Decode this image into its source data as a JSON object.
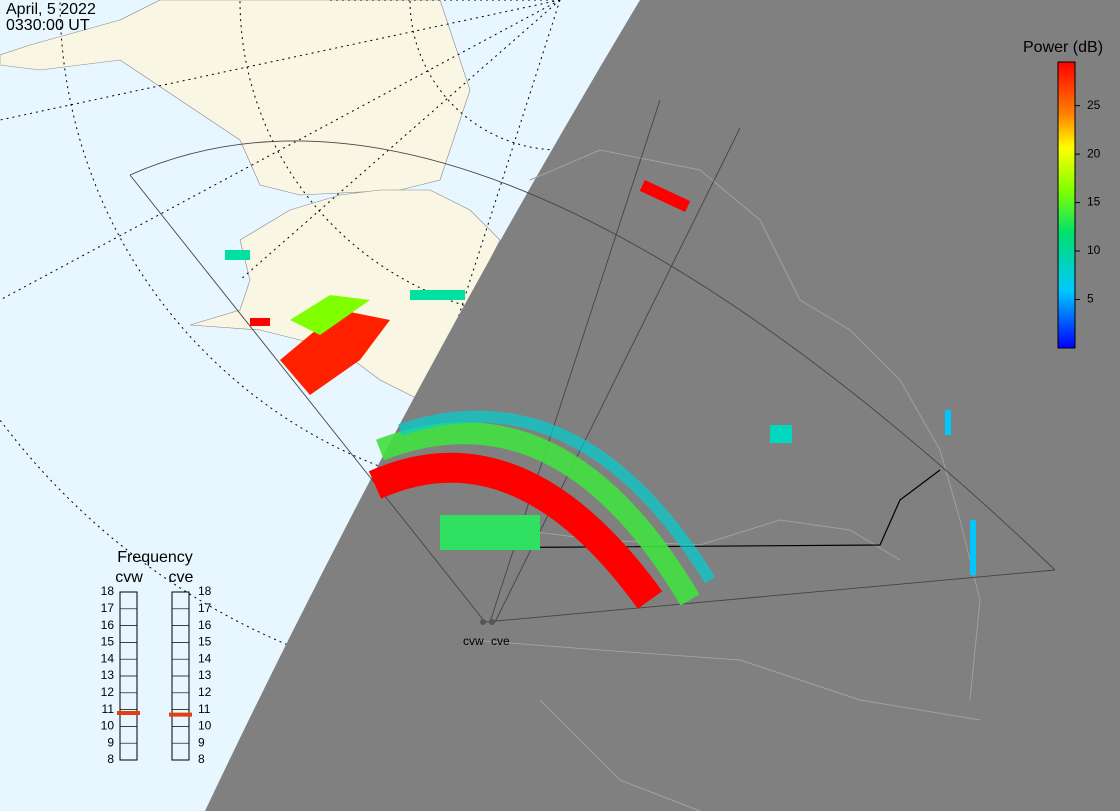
{
  "header": {
    "date": "April, 5 2022",
    "time": "0330:00 UT"
  },
  "colorbar": {
    "title": "Power (dB)",
    "range": [
      0,
      29.5
    ],
    "ticks": [
      5,
      10,
      15,
      20,
      25
    ]
  },
  "frequency": {
    "title": "Frequency",
    "range": [
      8,
      18
    ],
    "ticks": [
      8,
      9,
      10,
      11,
      12,
      13,
      14,
      15,
      16,
      17,
      18
    ],
    "radars": [
      {
        "name": "cvw",
        "value": 10.8
      },
      {
        "name": "cve",
        "value": 10.7
      }
    ]
  },
  "sites": [
    "cvw",
    "cve"
  ]
}
